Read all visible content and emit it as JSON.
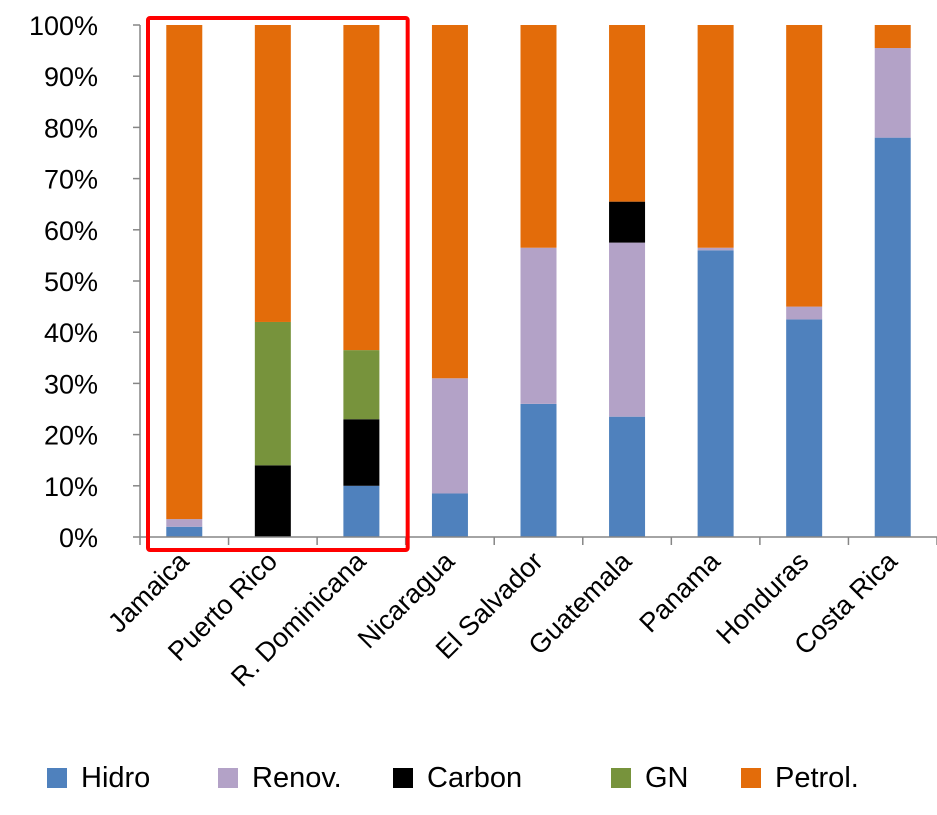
{
  "chart_data": {
    "type": "bar",
    "stacked": true,
    "percent": true,
    "categories": [
      "Jamaica",
      "Puerto Rico",
      "R. Dominicana",
      "Nicaragua",
      "El Salvador",
      "Guatemala",
      "Panama",
      "Honduras",
      "Costa Rica"
    ],
    "series": [
      {
        "name": "Hidro",
        "color": "#4f81bd",
        "values": [
          2,
          0,
          10,
          8.5,
          26,
          23.5,
          56,
          42.5,
          78
        ]
      },
      {
        "name": "Renov.",
        "color": "#b3a2c7",
        "values": [
          1.5,
          0,
          0,
          22.5,
          30.5,
          34,
          0.5,
          2.5,
          17.5
        ]
      },
      {
        "name": "Carbon",
        "color": "#000000",
        "values": [
          0,
          14,
          13,
          0,
          0,
          8,
          0,
          0,
          0
        ]
      },
      {
        "name": "GN",
        "color": "#77933c",
        "values": [
          0,
          28,
          13.5,
          0,
          0,
          0,
          0,
          0,
          0
        ]
      },
      {
        "name": "Petrol.",
        "color": "#e36c0a",
        "values": [
          96.5,
          58,
          63.5,
          69,
          43.5,
          34.5,
          43.5,
          55,
          4.5
        ]
      }
    ],
    "ylim": [
      0,
      100
    ],
    "yticks": [
      "0%",
      "10%",
      "20%",
      "30%",
      "40%",
      "50%",
      "60%",
      "70%",
      "80%",
      "90%",
      "100%"
    ],
    "grid": false,
    "legend_position": "bottom",
    "highlight": {
      "categories": [
        "Jamaica",
        "Puerto Rico",
        "R. Dominicana"
      ],
      "color": "#ff0000"
    },
    "title": "",
    "xlabel": "",
    "ylabel": ""
  }
}
